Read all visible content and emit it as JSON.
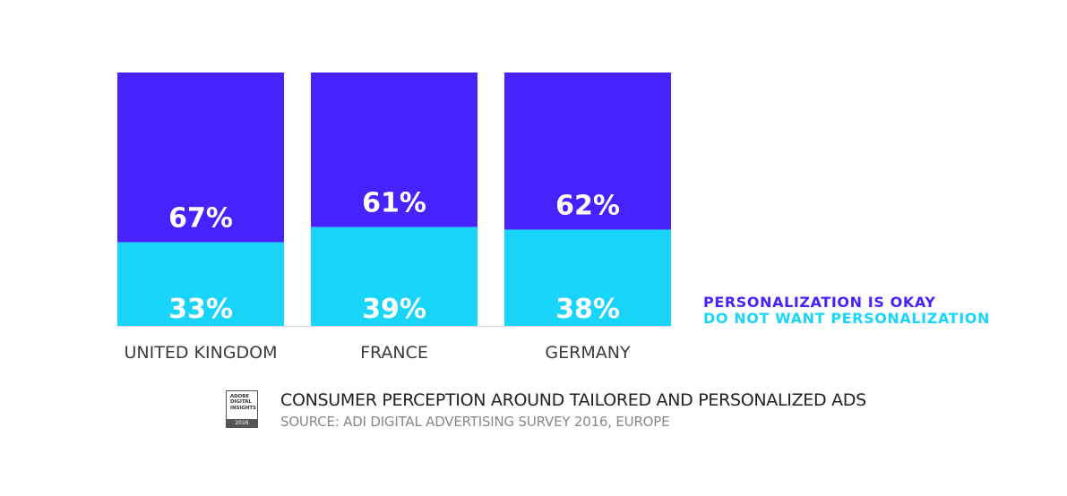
{
  "chart_data": {
    "type": "bar",
    "stacked": true,
    "categories": [
      "UNITED KINGDOM",
      "FRANCE",
      "GERMANY"
    ],
    "series": [
      {
        "name": "PERSONALIZATION IS OKAY",
        "color": "#4722ff",
        "values": [
          67,
          61,
          62
        ],
        "labels": [
          "67%",
          "61%",
          "62%"
        ]
      },
      {
        "name": "DO NOT WANT PERSONALIZATION",
        "color": "#1ad5fa",
        "values": [
          33,
          39,
          38
        ],
        "labels": [
          "33%",
          "39%",
          "38%"
        ]
      }
    ],
    "ylim": [
      0,
      100
    ],
    "grid": false,
    "legend_position": "right"
  },
  "footer": {
    "badge_text": "ADOBE DIGITAL INSIGHTS",
    "badge_lines": [
      "ADOBE",
      "DIGITAL",
      "INSIGHTS"
    ],
    "badge_year": "2016",
    "title": "CONSUMER PERCEPTION AROUND TAILORED AND PERSONALIZED ADS",
    "source": "SOURCE: ADI DIGITAL ADVERTISING SURVEY 2016, EUROPE"
  }
}
